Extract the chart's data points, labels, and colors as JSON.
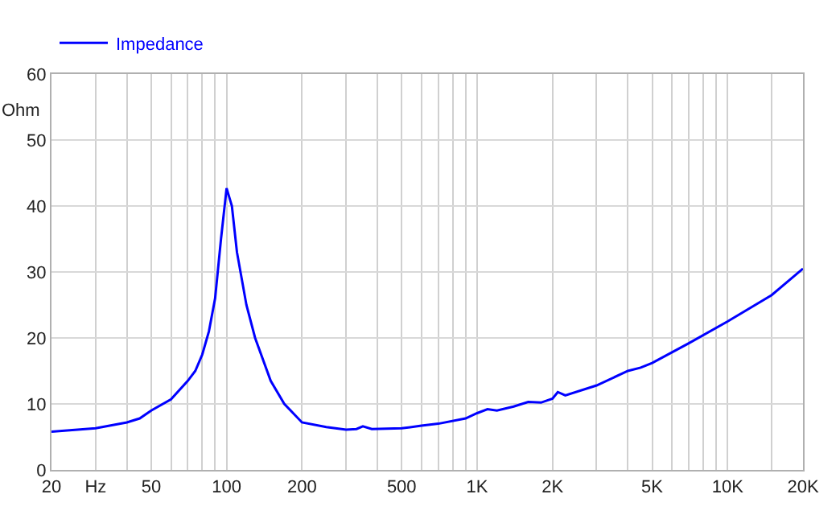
{
  "chart_data": {
    "type": "line",
    "ylabel": "Ohm",
    "log": "x",
    "grid": true,
    "legend": "top left",
    "marker": "none",
    "line_style": "solid",
    "x": [
      20,
      30,
      40,
      45,
      50,
      60,
      70,
      75,
      80,
      85,
      90,
      95,
      100,
      105,
      110,
      120,
      130,
      150,
      170,
      200,
      250,
      300,
      330,
      350,
      380,
      500,
      600,
      700,
      900,
      1000,
      1100,
      1200,
      1400,
      1600,
      1800,
      2000,
      2100,
      2250,
      3000,
      4000,
      4500,
      5000,
      7000,
      10000,
      15000,
      20000
    ],
    "series": [
      {
        "name": "Impedance",
        "color": "#0000ff",
        "values": [
          5.8,
          6.3,
          7.2,
          7.8,
          9.0,
          10.7,
          13.5,
          15,
          17.5,
          21,
          26,
          35,
          42.7,
          40,
          33,
          25,
          20,
          13.5,
          10,
          7.2,
          6.5,
          6.1,
          6.2,
          6.6,
          6.2,
          6.3,
          6.7,
          7.0,
          7.8,
          8.6,
          9.2,
          9.0,
          9.6,
          10.3,
          10.2,
          10.8,
          11.8,
          11.3,
          12.8,
          15.0,
          15.5,
          16.2,
          19.2,
          22.5,
          26.5,
          30.5
        ]
      }
    ],
    "xlim": [
      20,
      20000
    ],
    "xticks": [
      20,
      {
        "value": 30,
        "label": "Hz"
      },
      {
        "value": 40,
        "label": null
      },
      50,
      {
        "value": 60,
        "label": null
      },
      {
        "value": 70,
        "label": null
      },
      {
        "value": 80,
        "label": null
      },
      {
        "value": 90,
        "label": null
      },
      100,
      200,
      {
        "value": 300,
        "label": null
      },
      {
        "value": 400,
        "label": null
      },
      500,
      {
        "value": 600,
        "label": null
      },
      {
        "value": 700,
        "label": null
      },
      {
        "value": 800,
        "label": null
      },
      {
        "value": 900,
        "label": null
      },
      {
        "value": 1000,
        "label": "1K"
      },
      {
        "value": 2000,
        "label": "2K"
      },
      {
        "value": 3000,
        "label": null
      },
      {
        "value": 4000,
        "label": null
      },
      {
        "value": 5000,
        "label": "5K"
      },
      {
        "value": 6000,
        "label": null
      },
      {
        "value": 7000,
        "label": null
      },
      {
        "value": 8000,
        "label": null
      },
      {
        "value": 9000,
        "label": null
      },
      {
        "value": 10000,
        "label": "10K"
      },
      {
        "value": 15000,
        "label": null
      },
      {
        "value": 20000,
        "label": "20K"
      }
    ],
    "ylim": [
      0,
      60
    ],
    "yticks": [
      0,
      10,
      20,
      30,
      40,
      50,
      60
    ]
  }
}
